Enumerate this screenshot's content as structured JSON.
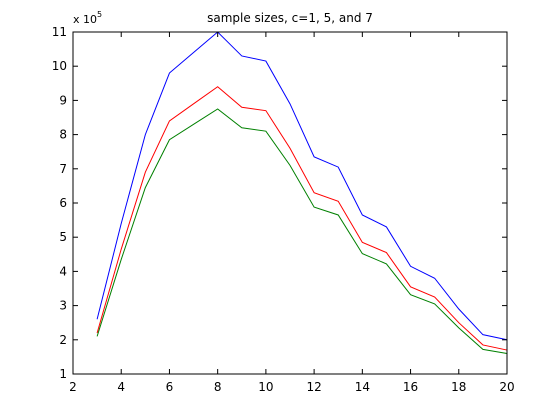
{
  "chart_data": {
    "type": "line",
    "title": "sample sizes, c=1, 5, and 7",
    "xlabel": "",
    "ylabel": "",
    "exponent_base": "x 10",
    "exponent_power": "5",
    "xlim": [
      2,
      20
    ],
    "ylim": [
      1,
      11
    ],
    "xticks": [
      2,
      4,
      6,
      8,
      10,
      12,
      14,
      16,
      18,
      20
    ],
    "yticks": [
      1,
      2,
      3,
      4,
      5,
      6,
      7,
      8,
      9,
      10,
      11
    ],
    "grid": false,
    "x": [
      3,
      4,
      5,
      6,
      7,
      8,
      9,
      10,
      11,
      12,
      13,
      14,
      15,
      16,
      17,
      18,
      19,
      20
    ],
    "series": [
      {
        "color": "#0000ff",
        "values": [
          2.6,
          5.4,
          8.0,
          9.8,
          10.4,
          11.0,
          10.3,
          10.15,
          8.9,
          7.35,
          7.05,
          5.65,
          5.3,
          4.15,
          3.8,
          2.9,
          2.15,
          2.0
        ]
      },
      {
        "color": "#ff0000",
        "values": [
          2.2,
          4.65,
          6.9,
          8.4,
          8.9,
          9.4,
          8.8,
          8.7,
          7.6,
          6.3,
          6.05,
          4.85,
          4.55,
          3.55,
          3.25,
          2.5,
          1.85,
          1.7
        ]
      },
      {
        "color": "#008000",
        "values": [
          2.1,
          4.35,
          6.45,
          7.85,
          8.3,
          8.75,
          8.2,
          8.1,
          7.1,
          5.88,
          5.65,
          4.52,
          4.22,
          3.32,
          3.05,
          2.35,
          1.72,
          1.6
        ]
      }
    ]
  }
}
